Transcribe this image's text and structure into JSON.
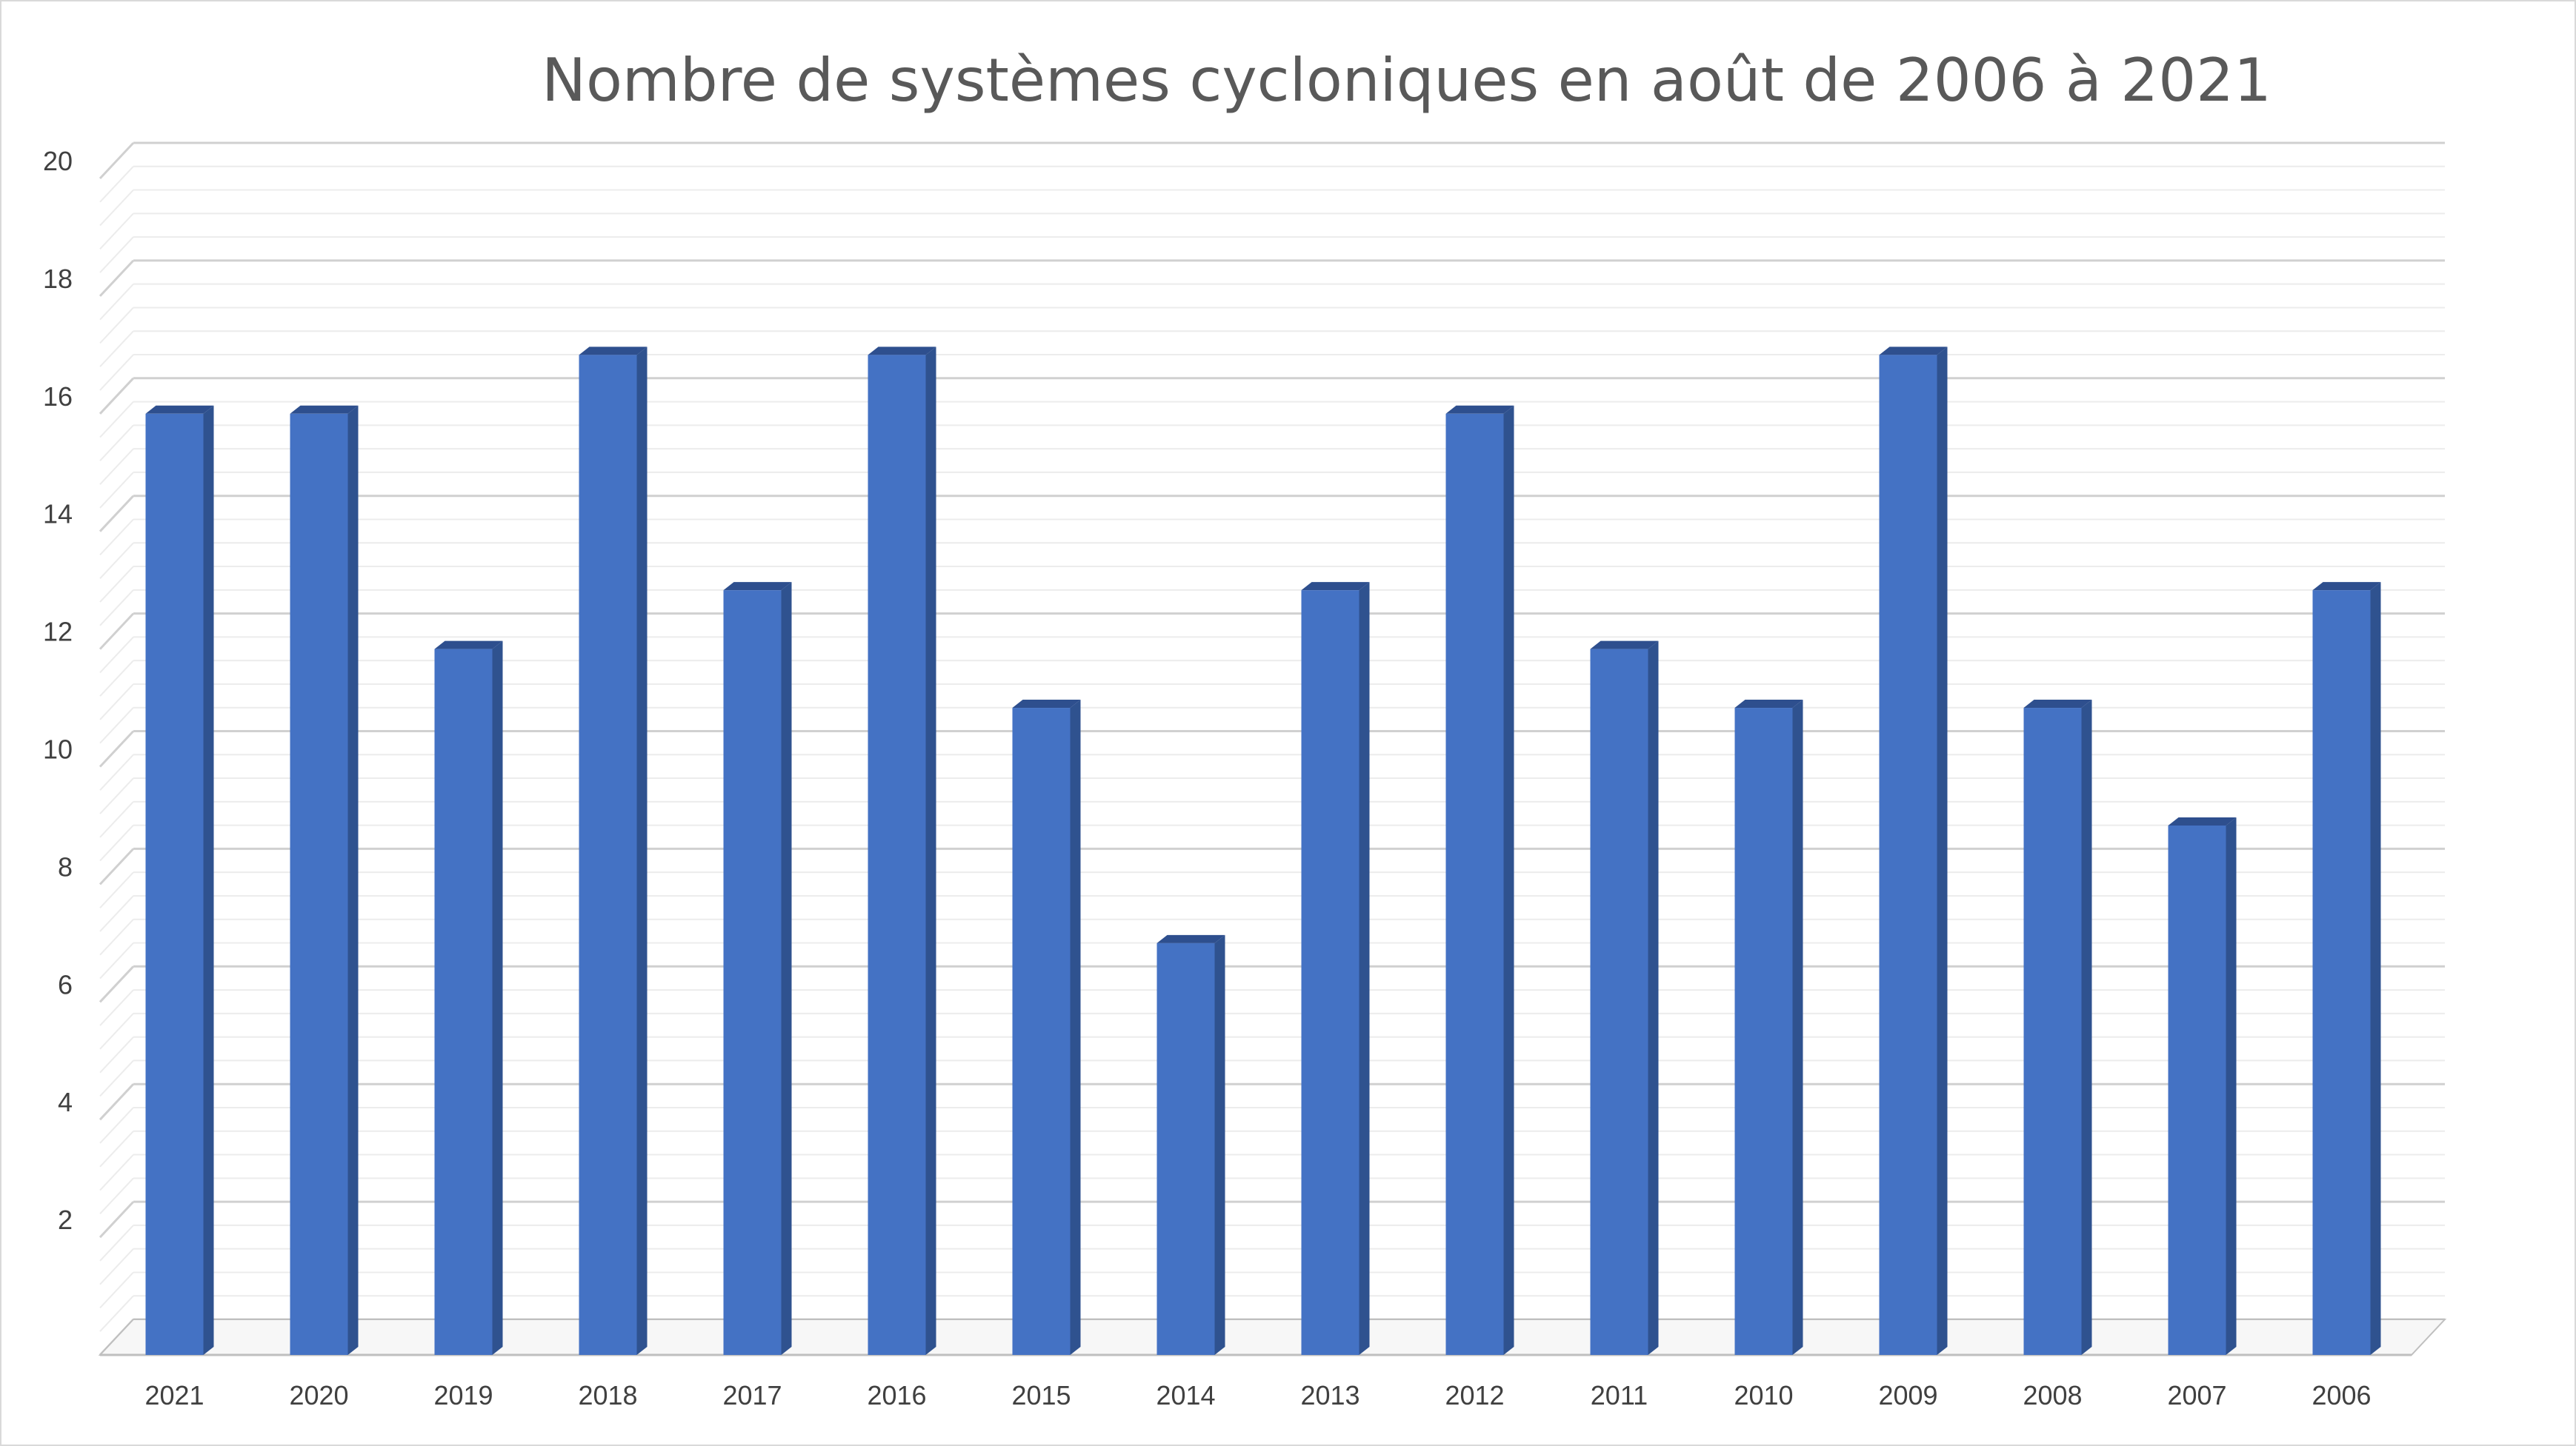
{
  "chart_data": {
    "type": "bar",
    "title": "Nombre de systèmes cycloniques en août de 2006 à 2021",
    "categories": [
      "2021",
      "2020",
      "2019",
      "2018",
      "2017",
      "2016",
      "2015",
      "2014",
      "2013",
      "2012",
      "2011",
      "2010",
      "2009",
      "2008",
      "2007",
      "2006"
    ],
    "series": [
      {
        "values": [
          16,
          16,
          12,
          17,
          13,
          17,
          11,
          7,
          13,
          16,
          12,
          11,
          17,
          11,
          9,
          13
        ]
      }
    ],
    "ylim": [
      0,
      20
    ],
    "y_ticks": [
      "2",
      "4",
      "6",
      "8",
      "10",
      "12",
      "14",
      "16",
      "18",
      "20"
    ],
    "xlabel": "",
    "ylabel": "",
    "grid": true,
    "style": "3d-column",
    "colors": {
      "bar_front": "#4472c4",
      "bar_side": "#2f528f",
      "bar_top": "#2e4f8e",
      "grid_major": "#d0d0d0",
      "grid_minor": "#ececec",
      "axis": "#bfbfbf"
    }
  }
}
